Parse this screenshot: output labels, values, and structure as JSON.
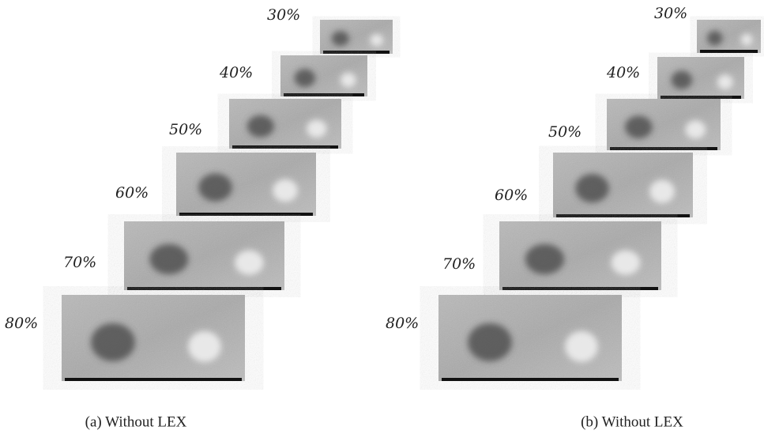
{
  "panels": [
    {
      "caption": "(a) Without LEX",
      "images": [
        {
          "label": "30%"
        },
        {
          "label": "40%"
        },
        {
          "label": "50%"
        },
        {
          "label": "60%"
        },
        {
          "label": "70%"
        },
        {
          "label": "80%"
        }
      ]
    },
    {
      "caption": "(b) Without LEX",
      "images": [
        {
          "label": "30%"
        },
        {
          "label": "40%"
        },
        {
          "label": "50%"
        },
        {
          "label": "60%"
        },
        {
          "label": "70%"
        },
        {
          "label": "80%"
        }
      ]
    }
  ]
}
